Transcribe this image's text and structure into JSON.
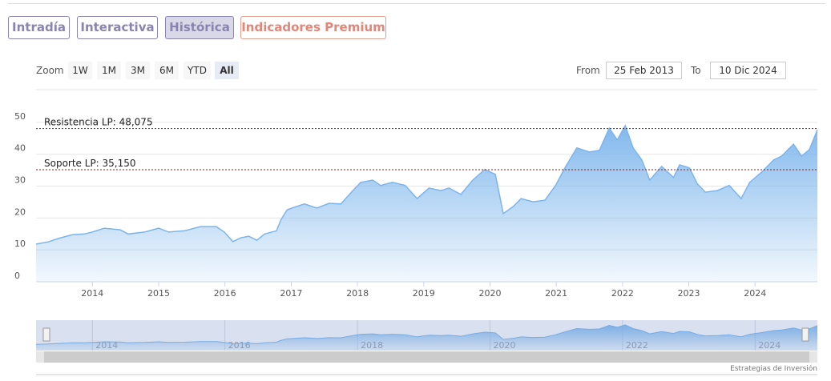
{
  "tabs": [
    "Intradía",
    "Interactiva",
    "Histórica",
    "Indicadores Premium"
  ],
  "range_selector": {
    "zoom_label": "Zoom",
    "buttons": [
      "1W",
      "1M",
      "3M",
      "6M",
      "YTD",
      "All"
    ],
    "from_label": "From",
    "from": "25 Feb 2013",
    "to_label": "To",
    "to": "10 Dic 2024"
  },
  "chart_data": {
    "type": "area",
    "x": [
      2013.15,
      2013.33,
      2013.52,
      2013.7,
      2013.88,
      2014.0,
      2014.18,
      2014.42,
      2014.54,
      2014.79,
      2015.0,
      2015.15,
      2015.39,
      2015.63,
      2015.87,
      2015.99,
      2016.12,
      2016.24,
      2016.36,
      2016.48,
      2016.6,
      2016.78,
      2016.84,
      2016.94,
      2017.08,
      2017.2,
      2017.39,
      2017.57,
      2017.75,
      2017.93,
      2018.05,
      2018.23,
      2018.35,
      2018.53,
      2018.72,
      2018.9,
      2019.08,
      2019.26,
      2019.38,
      2019.56,
      2019.74,
      2019.92,
      2020.08,
      2020.2,
      2020.35,
      2020.47,
      2020.65,
      2020.83,
      2020.99,
      2021.13,
      2021.31,
      2021.5,
      2021.65,
      2021.8,
      2021.92,
      2022.04,
      2022.16,
      2022.29,
      2022.41,
      2022.59,
      2022.77,
      2022.86,
      2023.01,
      2023.13,
      2023.25,
      2023.43,
      2023.61,
      2023.79,
      2023.92,
      2024.1,
      2024.28,
      2024.4,
      2024.58,
      2024.7,
      2024.82,
      2024.94
    ],
    "series": [
      {
        "color": "#7cb5ec",
        "values": [
          11.8,
          12.5,
          13.8,
          14.8,
          15,
          15.6,
          16.8,
          16.3,
          15,
          15.6,
          16.8,
          15.6,
          16,
          17.3,
          17.3,
          15.6,
          12.6,
          13.8,
          14.3,
          13,
          15,
          16,
          19.3,
          22.6,
          23.6,
          24.4,
          23.1,
          24.6,
          24.4,
          28.6,
          31.2,
          31.9,
          30.2,
          31.2,
          30.2,
          26.1,
          29.4,
          28.6,
          29.4,
          27.4,
          31.9,
          35.2,
          33.7,
          21.4,
          23.6,
          26.1,
          25.1,
          25.6,
          30.2,
          35.7,
          42,
          40.7,
          41.2,
          48.2,
          44.5,
          49,
          42,
          38.2,
          31.9,
          36.2,
          32.7,
          36.7,
          35.7,
          30.7,
          28.1,
          28.6,
          30.2,
          26.1,
          31.2,
          34.4,
          38.2,
          39.4,
          43.2,
          39.4,
          41.5,
          47.7
        ]
      }
    ],
    "xlim": [
      2013.15,
      2024.94
    ],
    "xticks": [
      2014,
      2015,
      2016,
      2017,
      2018,
      2019,
      2020,
      2021,
      2022,
      2023,
      2024
    ],
    "ylim": [
      0,
      55
    ],
    "yticks": [
      0,
      10,
      20,
      30,
      40,
      50
    ],
    "grid": true,
    "reference_lines": [
      {
        "label": "Resistencia LP: 48,075",
        "value": 48.075,
        "color": "#333333"
      },
      {
        "label": "Soporte LP: 35,150",
        "value": 35.15,
        "color": "#8b1a1a"
      }
    ],
    "navigator": {
      "xticks": [
        2014,
        2016,
        2018,
        2020,
        2022,
        2024
      ]
    }
  },
  "footer": "Estrategias de Inversión"
}
